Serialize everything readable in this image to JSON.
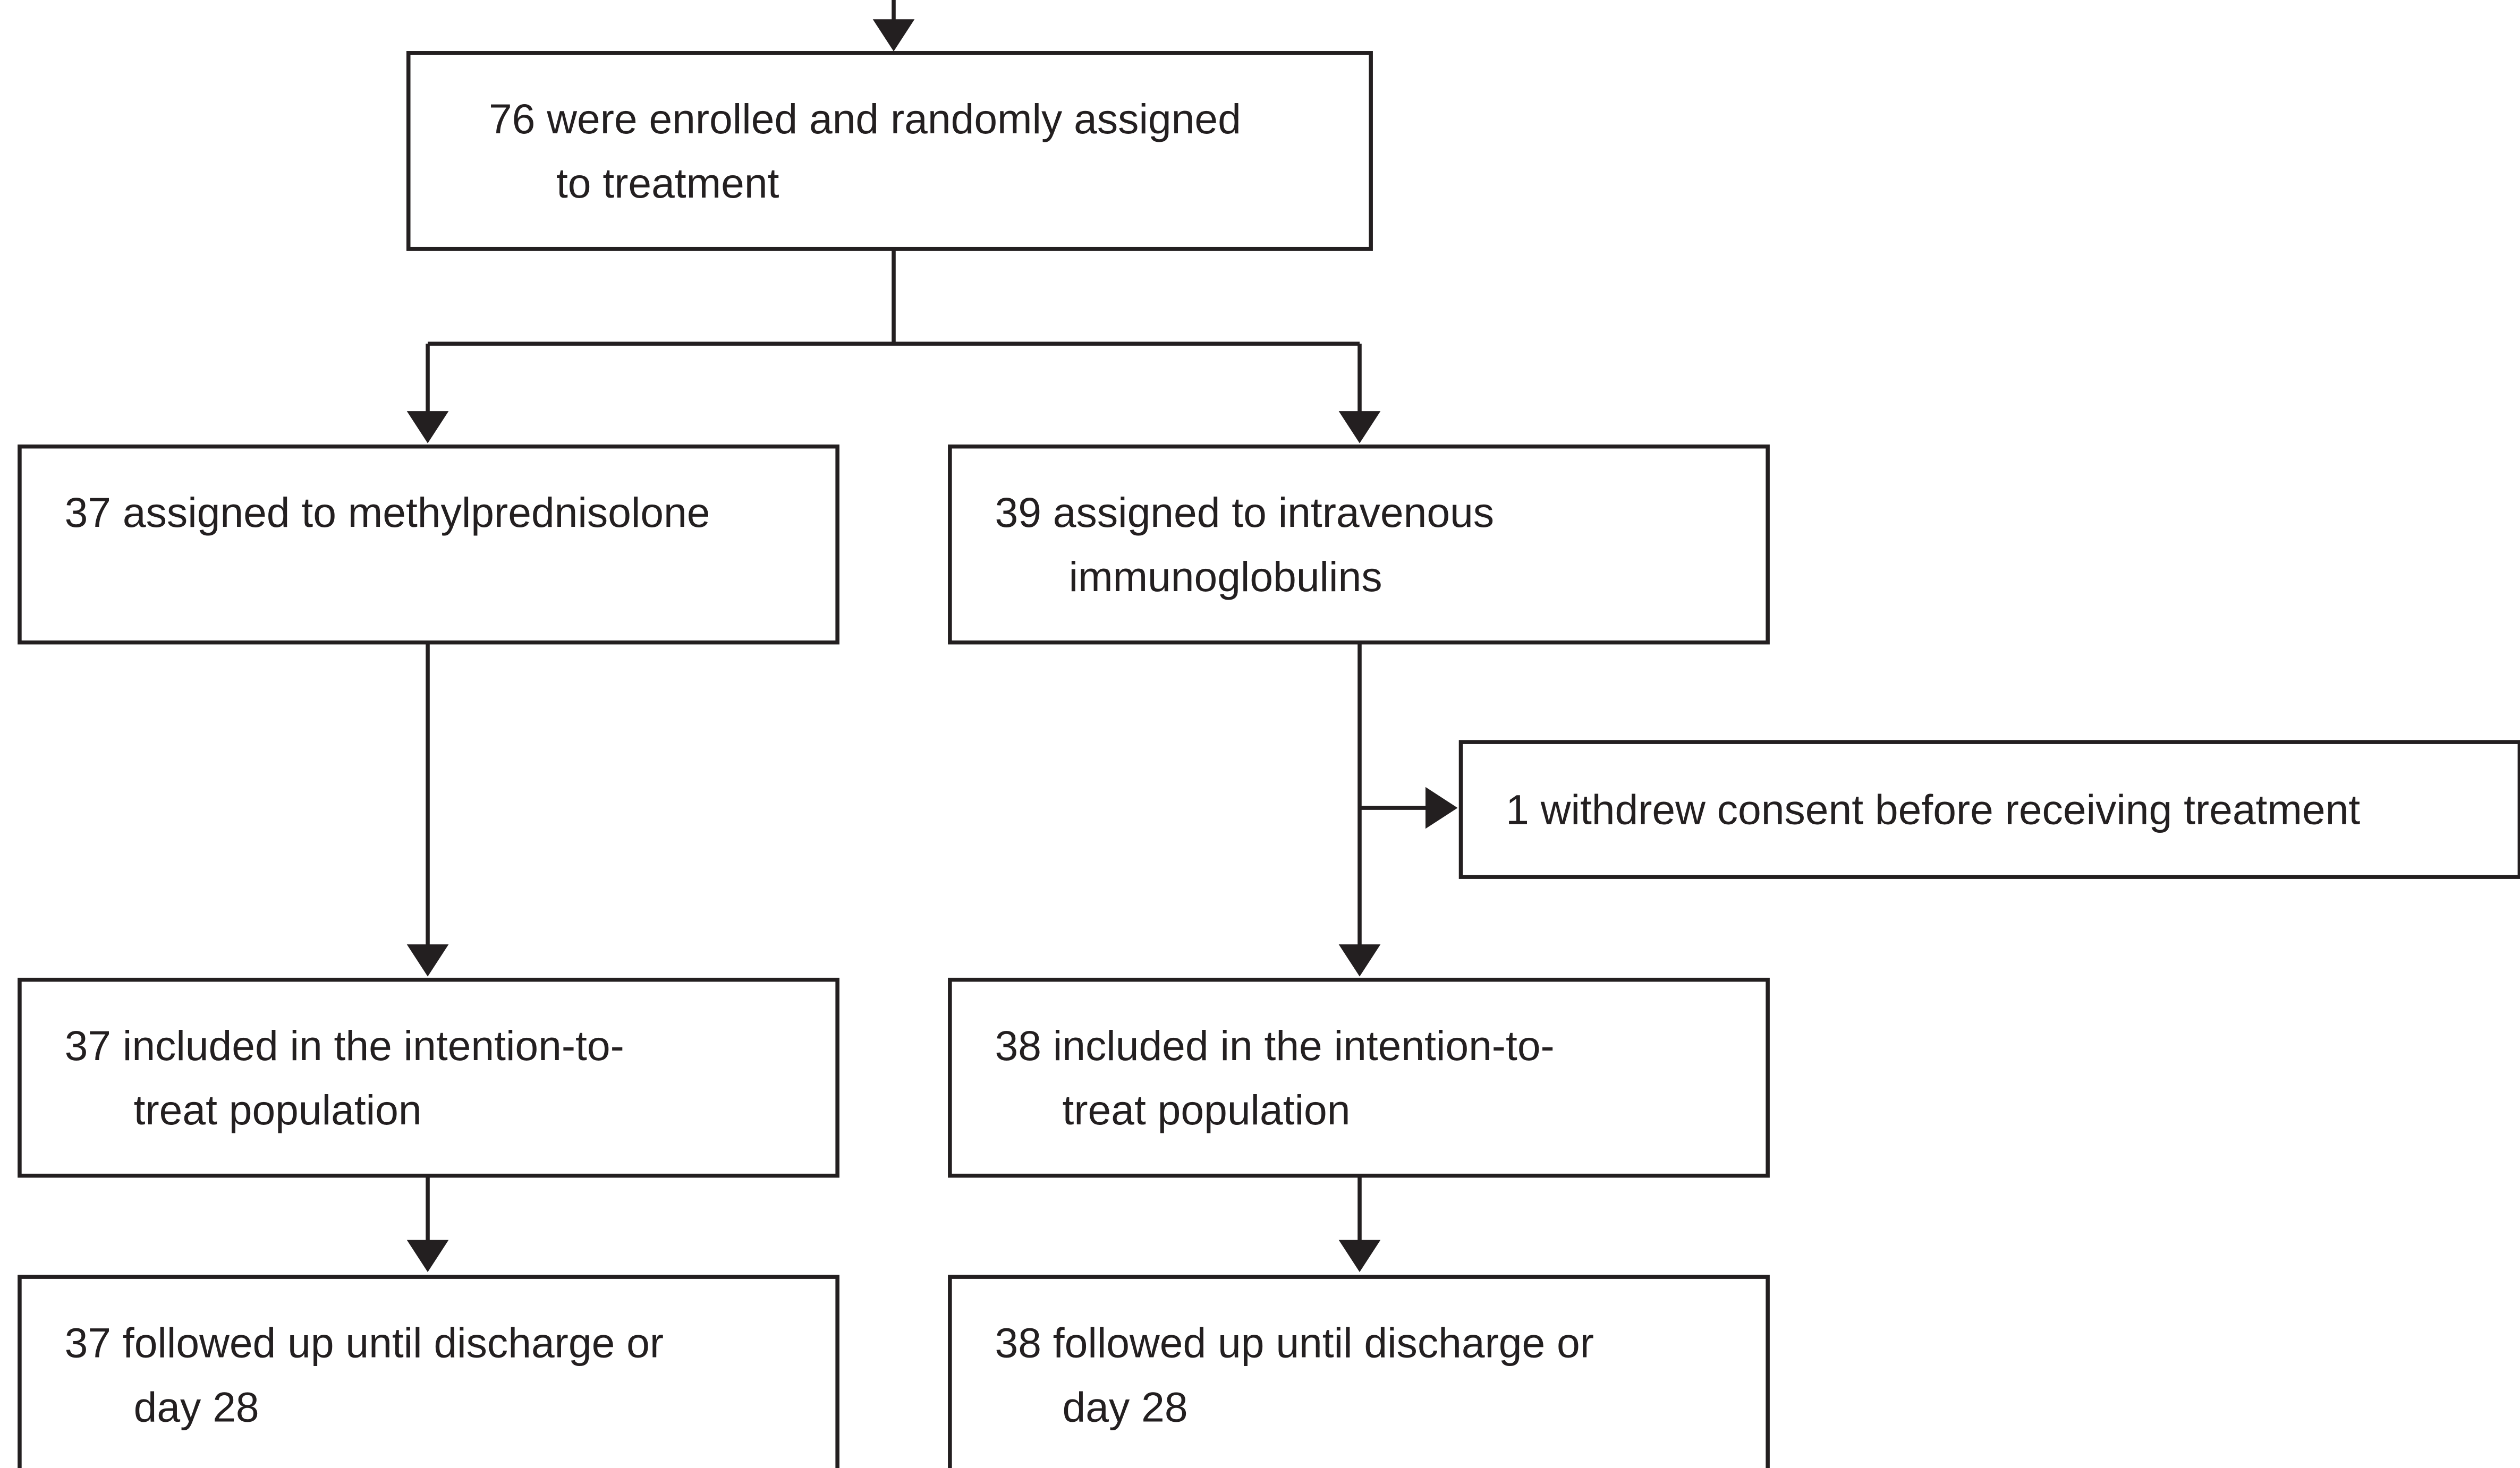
{
  "nodes": [
    {
      "lines": [
        "76 were enrolled and randomly assigned",
        "to treatment"
      ]
    },
    {
      "lines": [
        "37 assigned to methylprednisolone"
      ]
    },
    {
      "lines": [
        "39 assigned to intravenous",
        "immunoglobulins"
      ]
    },
    {
      "lines": [
        "1 withdrew consent before receiving treatment"
      ]
    },
    {
      "lines": [
        "37 included in the intention-to-",
        "treat population"
      ]
    },
    {
      "lines": [
        "38 included in the intention-to-",
        "treat population"
      ]
    },
    {
      "lines": [
        "37 followed up until discharge or",
        "day 28"
      ]
    },
    {
      "lines": [
        "38 followed up until discharge or",
        "day 28"
      ]
    }
  ]
}
